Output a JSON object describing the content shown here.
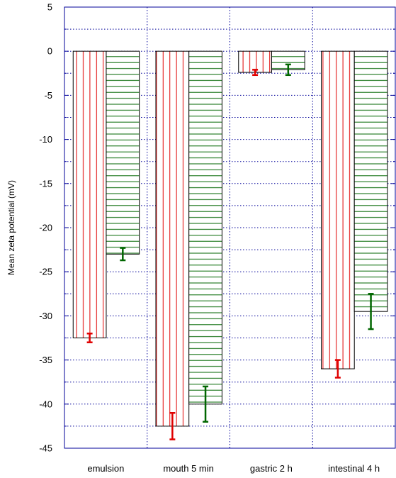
{
  "chart_data": {
    "type": "bar",
    "title": "",
    "xlabel": "",
    "ylabel": "Mean zeta potential (mV)",
    "ylim": [
      -45,
      5
    ],
    "yticks": [
      5,
      0,
      -5,
      -10,
      -15,
      -20,
      -25,
      -30,
      -35,
      -40,
      -45
    ],
    "grid": true,
    "legend": "none",
    "categories": [
      "emulsion",
      "mouth 5 min",
      "gastric 2 h",
      "intestinal 4 h"
    ],
    "series": [
      {
        "values": [
          -32.5,
          -42.5,
          -2.4,
          -36
        ],
        "errors": [
          0.5,
          1.5,
          0.3,
          1.0
        ],
        "color": "#e00000",
        "pattern": "vertical-hatch"
      },
      {
        "values": [
          -23,
          -40,
          -2.1,
          -29.5
        ],
        "errors": [
          0.7,
          2.0,
          0.6,
          2.0
        ],
        "color": "#006600",
        "pattern": "horizontal-hatch"
      }
    ],
    "colors": {
      "frame": "#000099",
      "grid": "#000099"
    }
  }
}
